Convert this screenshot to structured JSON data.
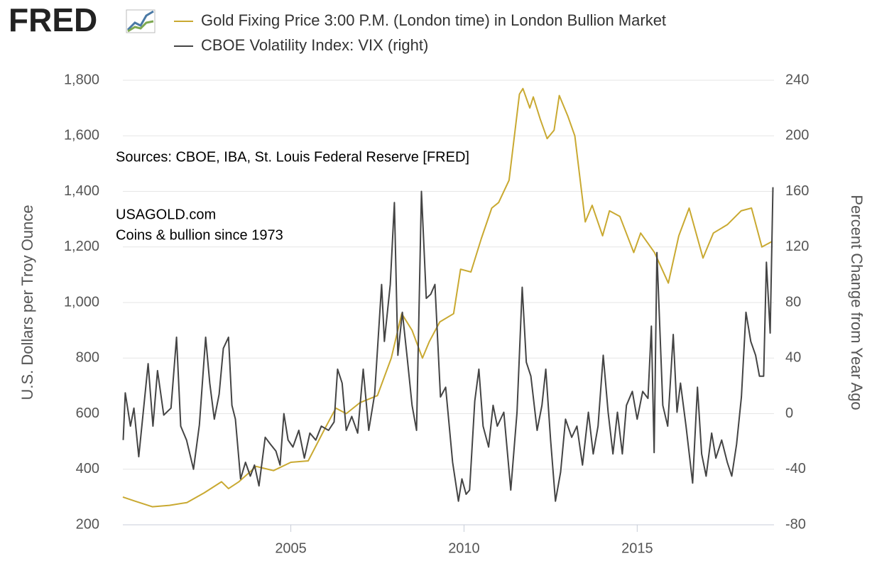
{
  "chart_data": {
    "type": "line",
    "logo": "FRED",
    "annotations": [
      "Sources:  CBOE, IBA, St. Louis Federal Reserve [FRED]",
      "USAGOLD.com",
      "Coins & bullion since 1973"
    ],
    "ylabel": "U.S. Dollars per Troy Ounce",
    "y2label": "Percent Change from Year Ago",
    "xlim": [
      2000.15,
      2018.95
    ],
    "xticks": [
      2005,
      2010,
      2015
    ],
    "ylim": [
      200,
      1800
    ],
    "yticks": [
      200,
      400,
      600,
      800,
      {
        "value": 1000,
        "label": "1,000"
      },
      {
        "value": 1200,
        "label": "1,200"
      },
      {
        "value": 1400,
        "label": "1,400"
      },
      {
        "value": 1600,
        "label": "1,600"
      },
      {
        "value": 1800,
        "label": "1,800"
      }
    ],
    "y2lim": [
      -80,
      240
    ],
    "y2ticks": [
      -80,
      -40,
      0,
      40,
      80,
      120,
      160,
      200,
      240
    ],
    "grid": true,
    "series": [
      {
        "name": "Gold Fixing Price 3:00 P.M. (London time) in London Bullion Market",
        "color": "#c9a931",
        "x": [
          2000.15,
          2000.5,
          2001.0,
          2001.5,
          2002.0,
          2002.5,
          2003.0,
          2003.2,
          2003.5,
          2004.0,
          2004.5,
          2005.0,
          2005.5,
          2006.0,
          2006.3,
          2006.6,
          2007.0,
          2007.5,
          2007.9,
          2008.2,
          2008.5,
          2008.8,
          2009.0,
          2009.3,
          2009.7,
          2009.9,
          2010.2,
          2010.5,
          2010.8,
          2011.0,
          2011.3,
          2011.6,
          2011.7,
          2011.9,
          2012.0,
          2012.2,
          2012.4,
          2012.6,
          2012.75,
          2013.0,
          2013.2,
          2013.5,
          2013.7,
          2014.0,
          2014.2,
          2014.5,
          2014.9,
          2015.1,
          2015.5,
          2015.9,
          2016.2,
          2016.5,
          2016.9,
          2017.2,
          2017.6,
          2018.0,
          2018.3,
          2018.6,
          2018.9
        ],
        "values": [
          300,
          285,
          265,
          270,
          280,
          315,
          355,
          330,
          355,
          410,
          395,
          425,
          430,
          550,
          620,
          600,
          640,
          665,
          800,
          960,
          900,
          800,
          860,
          930,
          960,
          1120,
          1110,
          1230,
          1340,
          1360,
          1440,
          1750,
          1770,
          1700,
          1740,
          1660,
          1590,
          1620,
          1745,
          1670,
          1600,
          1290,
          1350,
          1240,
          1330,
          1310,
          1180,
          1250,
          1180,
          1070,
          1240,
          1340,
          1160,
          1250,
          1280,
          1330,
          1340,
          1200,
          1220
        ]
      },
      {
        "name": "CBOE Volatility Index: VIX (right)",
        "color": "#444444",
        "axis": "y2",
        "x": [
          2000.16,
          2000.22,
          2000.37,
          2000.47,
          2000.61,
          2000.88,
          2001.02,
          2001.15,
          2001.33,
          2001.54,
          2001.7,
          2001.82,
          2001.99,
          2002.19,
          2002.36,
          2002.54,
          2002.66,
          2002.79,
          2002.93,
          2003.05,
          2003.2,
          2003.3,
          2003.4,
          2003.55,
          2003.69,
          2003.83,
          2003.95,
          2004.08,
          2004.26,
          2004.41,
          2004.57,
          2004.69,
          2004.8,
          2004.92,
          2005.06,
          2005.23,
          2005.39,
          2005.55,
          2005.72,
          2005.88,
          2006.09,
          2006.25,
          2006.35,
          2006.48,
          2006.6,
          2006.76,
          2006.93,
          2007.09,
          2007.25,
          2007.42,
          2007.62,
          2007.7,
          2007.87,
          2007.99,
          2008.09,
          2008.22,
          2008.36,
          2008.5,
          2008.63,
          2008.77,
          2008.91,
          2009.04,
          2009.16,
          2009.32,
          2009.47,
          2009.67,
          2009.84,
          2009.94,
          2010.06,
          2010.16,
          2010.31,
          2010.43,
          2010.55,
          2010.71,
          2010.84,
          2010.96,
          2011.15,
          2011.35,
          2011.53,
          2011.68,
          2011.8,
          2011.93,
          2012.11,
          2012.25,
          2012.36,
          2012.5,
          2012.64,
          2012.79,
          2012.93,
          2013.11,
          2013.26,
          2013.42,
          2013.59,
          2013.73,
          2013.87,
          2014.02,
          2014.16,
          2014.3,
          2014.43,
          2014.57,
          2014.69,
          2014.86,
          2015.0,
          2015.16,
          2015.31,
          2015.41,
          2015.49,
          2015.57,
          2015.74,
          2015.88,
          2016.04,
          2016.15,
          2016.25,
          2016.41,
          2016.6,
          2016.74,
          2016.86,
          2016.99,
          2017.15,
          2017.27,
          2017.44,
          2017.6,
          2017.73,
          2017.87,
          2018.01,
          2018.14,
          2018.28,
          2018.42,
          2018.53,
          2018.65,
          2018.73,
          2018.84,
          2018.92
        ],
        "values": [
          -19,
          15,
          -9,
          4,
          -31,
          36,
          -9,
          31,
          -1,
          4,
          55,
          -9,
          -19,
          -40,
          -8,
          55,
          22,
          -4,
          14,
          47,
          55,
          6,
          -4,
          -47,
          -35,
          -45,
          -37,
          -52,
          -17,
          -22,
          -27,
          -37,
          0,
          -19,
          -24,
          -12,
          -32,
          -14,
          -19,
          -9,
          -12,
          -6,
          32,
          22,
          -12,
          -2,
          -14,
          32,
          -12,
          14,
          93,
          52,
          93,
          152,
          42,
          73,
          40,
          6,
          -12,
          160,
          83,
          86,
          93,
          12,
          19,
          -35,
          -63,
          -47,
          -58,
          -55,
          9,
          32,
          -9,
          -24,
          6,
          -9,
          1,
          -55,
          1,
          91,
          37,
          27,
          -12,
          6,
          32,
          -19,
          -63,
          -42,
          -4,
          -17,
          -9,
          -37,
          1,
          -29,
          -9,
          42,
          1,
          -29,
          1,
          -29,
          6,
          16,
          -4,
          16,
          11,
          63,
          -28,
          116,
          6,
          -9,
          57,
          1,
          22,
          -9,
          -50,
          19,
          -29,
          -45,
          -14,
          -32,
          -19,
          -35,
          -45,
          -22,
          12,
          73,
          52,
          42,
          27,
          27,
          109,
          58,
          163
        ]
      }
    ]
  }
}
